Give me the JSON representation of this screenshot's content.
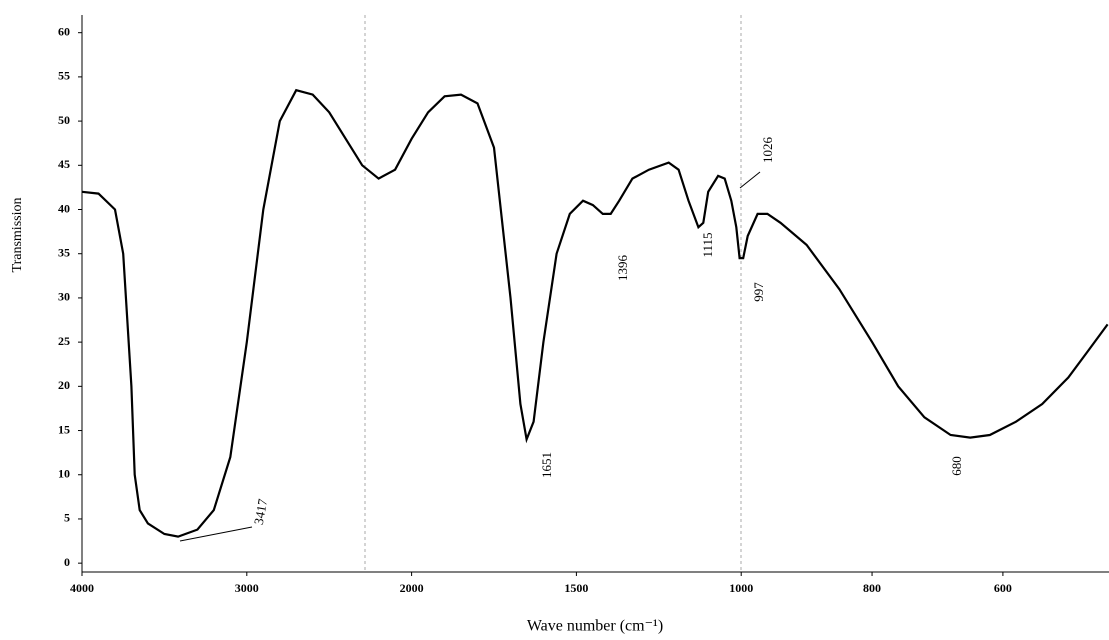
{
  "chart_data": {
    "type": "line",
    "x_label": "Wave number (cm⁻¹)",
    "y_label": "Transmission",
    "xlim": [
      4000,
      440
    ],
    "xticks": [
      4000,
      3000,
      2000,
      1500,
      1000,
      800,
      600
    ],
    "ylim": [
      -1,
      62
    ],
    "yticks": [
      0,
      5,
      10,
      15,
      20,
      25,
      30,
      35,
      40,
      45,
      50,
      55,
      60
    ],
    "annotations": [
      "3417",
      "1651",
      "1396",
      "1115",
      "1026",
      "997",
      "680"
    ],
    "series": [
      {
        "color": "#000000",
        "x": [
          4000,
          3900,
          3800,
          3750,
          3700,
          3680,
          3650,
          3600,
          3500,
          3417,
          3300,
          3200,
          3100,
          3000,
          2900,
          2800,
          2700,
          2600,
          2500,
          2400,
          2300,
          2200,
          2100,
          2000,
          1950,
          1900,
          1850,
          1800,
          1750,
          1700,
          1670,
          1651,
          1630,
          1600,
          1560,
          1520,
          1480,
          1450,
          1420,
          1396,
          1370,
          1330,
          1280,
          1220,
          1190,
          1160,
          1130,
          1115,
          1100,
          1070,
          1050,
          1030,
          1015,
          1005,
          997,
          990,
          975,
          960,
          940,
          900,
          850,
          800,
          760,
          720,
          680,
          650,
          620,
          580,
          540,
          500,
          470,
          440
        ],
        "values": [
          42,
          41.8,
          40,
          35,
          20,
          10,
          6,
          4.5,
          3.3,
          3,
          3.8,
          6,
          12,
          25,
          40,
          50,
          53.5,
          53,
          51,
          48,
          45,
          43.5,
          44.5,
          48,
          51,
          52.8,
          53,
          52,
          47,
          30,
          18,
          14,
          16,
          25,
          35,
          39.5,
          41,
          40.5,
          39.5,
          39.5,
          41,
          43.5,
          44.5,
          45.3,
          44.5,
          41,
          38,
          38.5,
          42,
          43.8,
          43.5,
          41,
          38,
          34.5,
          34.5,
          37,
          39.5,
          39.5,
          38.5,
          36,
          31,
          25,
          20,
          16.5,
          14.5,
          14.2,
          14.5,
          16,
          18,
          21,
          24,
          27
        ]
      }
    ]
  }
}
